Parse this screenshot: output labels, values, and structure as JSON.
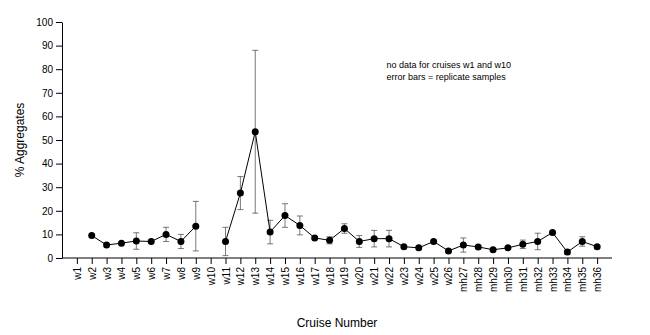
{
  "chart_data": {
    "type": "line",
    "x_label": "Cruise Number",
    "y_label": "% Aggregates",
    "annotations": [
      "no data for cruises w1 and w10",
      "error bars = replicate samples"
    ],
    "categories": [
      "w1",
      "w2",
      "w3",
      "w4",
      "w5",
      "w6",
      "w7",
      "w8",
      "w9",
      "w10",
      "w11",
      "w12",
      "w13",
      "w14",
      "w15",
      "w16",
      "w17",
      "w18",
      "w19",
      "w20",
      "w21",
      "w22",
      "w23",
      "w24",
      "w25",
      "w26",
      "mh27",
      "mh28",
      "mh29",
      "mh30",
      "mh31",
      "mh32",
      "mh33",
      "mh34",
      "mh35",
      "mh36"
    ],
    "values": [
      null,
      9.5,
      5.5,
      6.3,
      7.2,
      7,
      10,
      7,
      13.5,
      null,
      7,
      27.5,
      53.5,
      11,
      18,
      13.8,
      8.5,
      7.5,
      12.5,
      7,
      8.2,
      8.2,
      4.8,
      4.3,
      7,
      3,
      5.5,
      4.7,
      3.5,
      4.3,
      5.8,
      7,
      10.8,
      2.5,
      7,
      4.8
    ],
    "errors": [
      null,
      null,
      null,
      null,
      3.5,
      null,
      3,
      3,
      10.5,
      null,
      6,
      7,
      34.5,
      5,
      5,
      4,
      0.5,
      1.5,
      2,
      2.5,
      3.5,
      3.5,
      0.5,
      0.5,
      0.5,
      0.5,
      3,
      0.5,
      0.5,
      0.5,
      1.8,
      3.5,
      0.5,
      1,
      2,
      0.5
    ],
    "ylim": [
      0,
      100
    ],
    "yticks": [
      0,
      10,
      20,
      30,
      40,
      50,
      60,
      70,
      80,
      90,
      100
    ],
    "color": "#000000",
    "marker": "circle",
    "line_style": "solid",
    "grid": false
  }
}
